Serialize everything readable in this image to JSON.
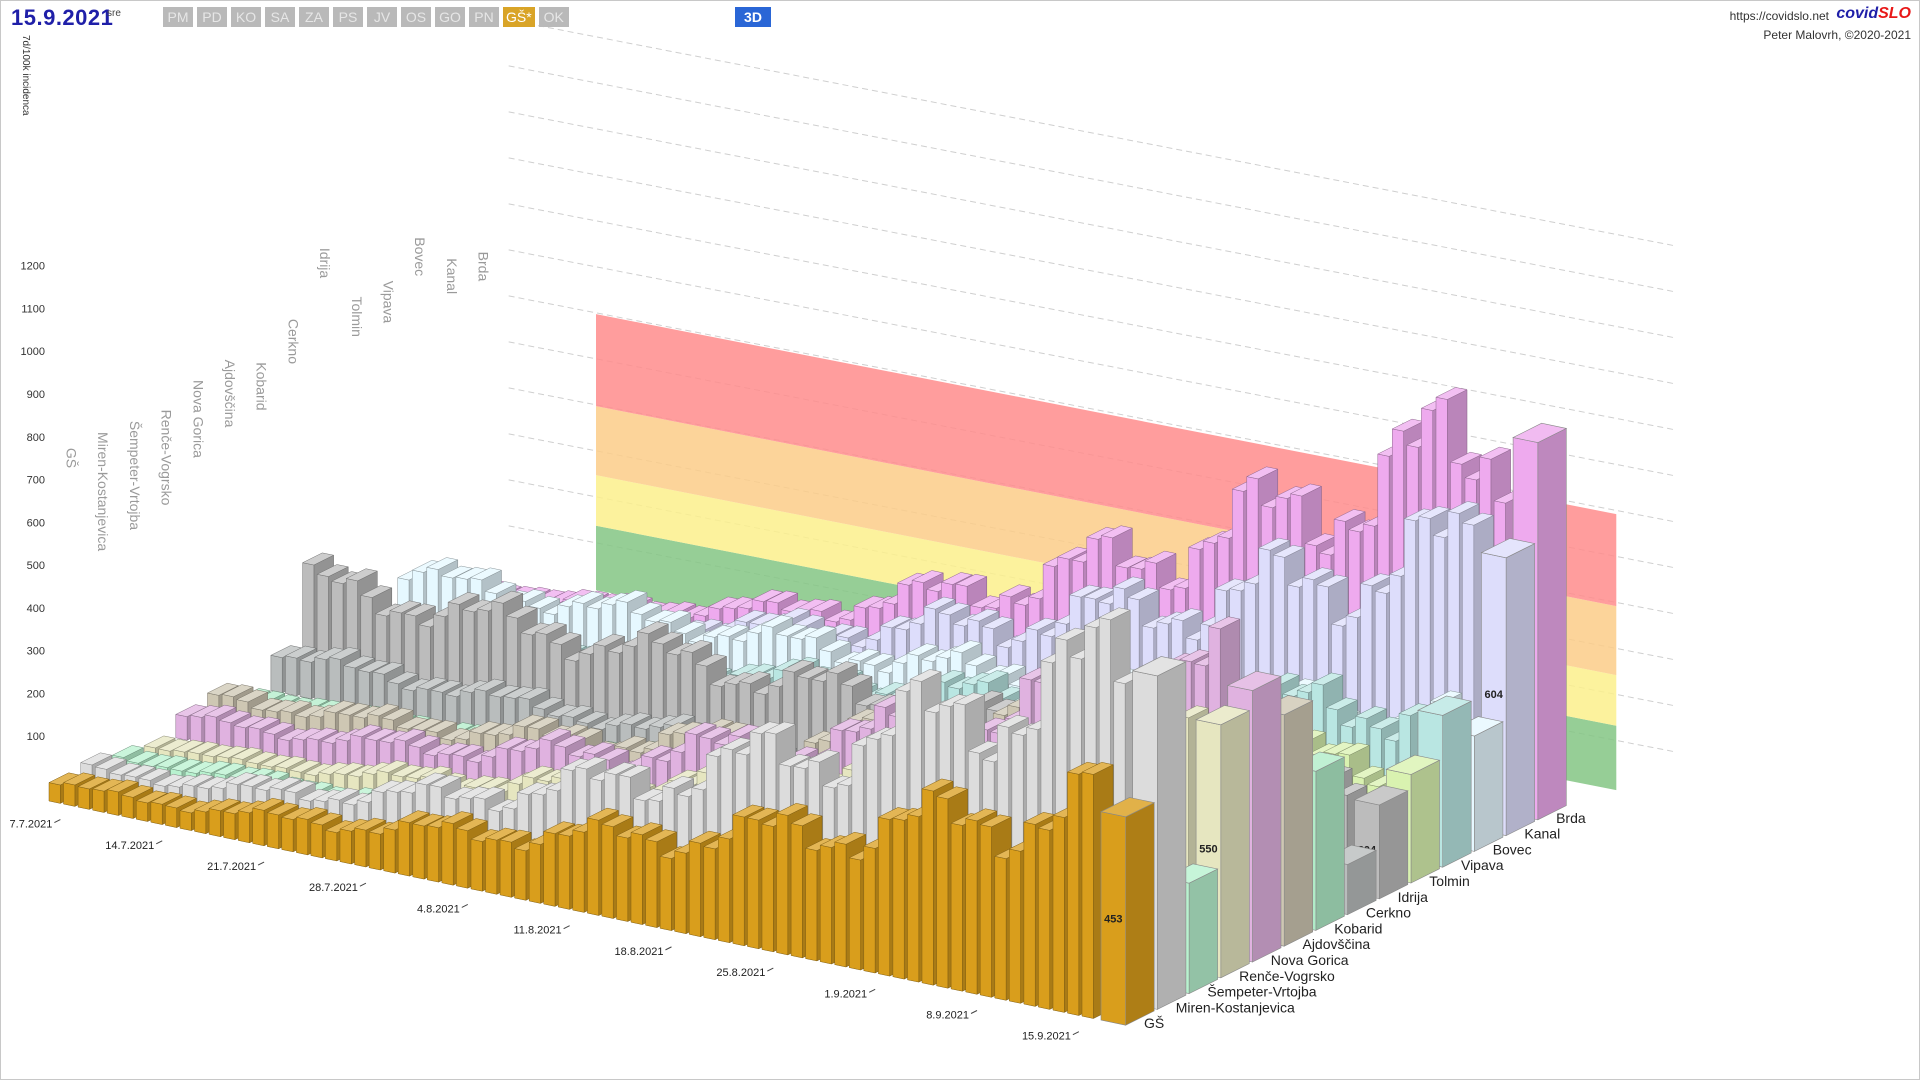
{
  "header": {
    "date": "15.9.2021",
    "weekday": "sre",
    "regions": [
      "PM",
      "PD",
      "KO",
      "SA",
      "ZA",
      "PS",
      "JV",
      "OS",
      "GO",
      "PN",
      "GŠ*",
      "OK"
    ],
    "active_region": "GŠ*",
    "view_button": "3D",
    "site_url": "https://covidslo.net",
    "brand_a": "covid",
    "brand_b": "SLO",
    "author": "Peter Malovrh, ©2020-2021"
  },
  "colors": {
    "total": "#d99e1c",
    "band_green": "#84c584",
    "band_yellow": "#fbf08c",
    "band_orange": "#fbcd88",
    "band_red": "#ff8c8c",
    "series": [
      "#dcdcdc",
      "#b8f2cf",
      "#e6e6c0",
      "#e0b2e0",
      "#cec7b3",
      "#b0ecc8",
      "#b9bdbd",
      "#bcbcbc",
      "#d9f2b0",
      "#b9e6e2",
      "#e6f8ff",
      "#ddddfb",
      "#eeaaee"
    ]
  },
  "chart_data": {
    "type": "bar",
    "subtype": "3d-bar-series-depth",
    "ylabel": "7d/100k incidenca",
    "ylim": [
      0,
      1300
    ],
    "yticks": [
      100,
      200,
      300,
      400,
      500,
      600,
      700,
      800,
      900,
      1000,
      1100,
      1200
    ],
    "date_ticks": [
      "7.7.2021",
      "14.7.2021",
      "21.7.2021",
      "28.7.2021",
      "4.8.2021",
      "11.8.2021",
      "18.8.2021",
      "25.8.2021",
      "1.9.2021",
      "8.9.2021",
      "15.9.2021"
    ],
    "days": 72,
    "thresholds": [
      {
        "from": 0,
        "to": 140,
        "color": "green"
      },
      {
        "from": 140,
        "to": 250,
        "color": "yellow"
      },
      {
        "from": 250,
        "to": 400,
        "color": "orange"
      },
      {
        "from": 400,
        "to": 600,
        "color": "red"
      }
    ],
    "series": [
      {
        "name": "GŠ",
        "start": 40,
        "latest": 453
      },
      {
        "name": "Miren-Kostanjevica",
        "start": 40,
        "latest": 725
      },
      {
        "name": "Šempeter-Vrtojba",
        "start": 30,
        "latest": 240
      },
      {
        "name": "Renče-Vogrsko",
        "start": 20,
        "latest": 550
      },
      {
        "name": "Nova Gorica",
        "start": 50,
        "latest": 590
      },
      {
        "name": "Ajdovščina",
        "start": 60,
        "latest": 503
      },
      {
        "name": "Kobarid",
        "start": 20,
        "latest": 346
      },
      {
        "name": "Cerkno",
        "start": 80,
        "latest": 109
      },
      {
        "name": "Idrija",
        "start": 200,
        "latest": 204
      },
      {
        "name": "Tolmin",
        "start": 60,
        "latest": 236
      },
      {
        "name": "Vipava",
        "start": 60,
        "latest": 330
      },
      {
        "name": "Bovec",
        "start": 120,
        "latest": 251
      },
      {
        "name": "Kanal",
        "start": 40,
        "latest": 604
      },
      {
        "name": "Brda",
        "start": 20,
        "latest": 820
      }
    ]
  }
}
